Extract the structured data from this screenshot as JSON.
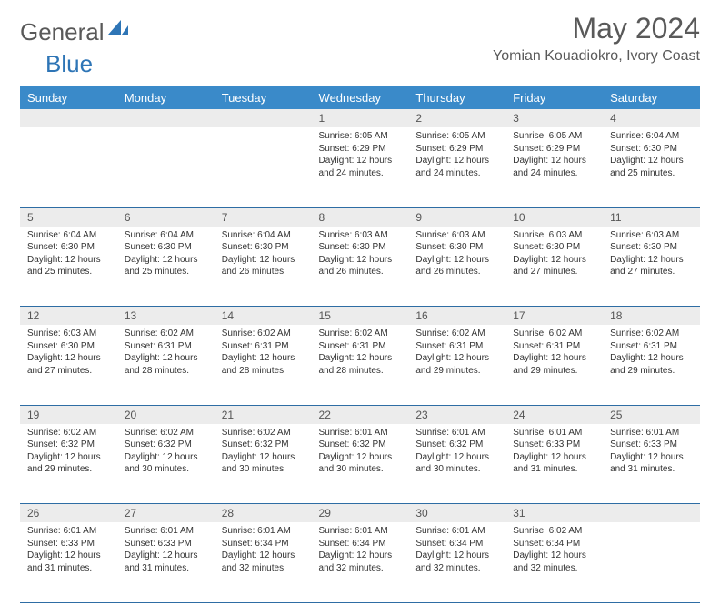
{
  "brand": {
    "part1": "General",
    "part2": "Blue"
  },
  "title": "May 2024",
  "location": "Yomian Kouadiokro, Ivory Coast",
  "colors": {
    "header_bg": "#3a8ac9",
    "rule": "#2e6da4",
    "daynum_bg": "#ececec",
    "text": "#333333",
    "title_text": "#595959",
    "brand_blue": "#2e75b6"
  },
  "dayNames": [
    "Sunday",
    "Monday",
    "Tuesday",
    "Wednesday",
    "Thursday",
    "Friday",
    "Saturday"
  ],
  "weeks": [
    {
      "nums": [
        "",
        "",
        "",
        "1",
        "2",
        "3",
        "4"
      ],
      "cells": [
        null,
        null,
        null,
        {
          "sunrise": "6:05 AM",
          "sunset": "6:29 PM",
          "daylight": "12 hours and 24 minutes."
        },
        {
          "sunrise": "6:05 AM",
          "sunset": "6:29 PM",
          "daylight": "12 hours and 24 minutes."
        },
        {
          "sunrise": "6:05 AM",
          "sunset": "6:29 PM",
          "daylight": "12 hours and 24 minutes."
        },
        {
          "sunrise": "6:04 AM",
          "sunset": "6:30 PM",
          "daylight": "12 hours and 25 minutes."
        }
      ]
    },
    {
      "nums": [
        "5",
        "6",
        "7",
        "8",
        "9",
        "10",
        "11"
      ],
      "cells": [
        {
          "sunrise": "6:04 AM",
          "sunset": "6:30 PM",
          "daylight": "12 hours and 25 minutes."
        },
        {
          "sunrise": "6:04 AM",
          "sunset": "6:30 PM",
          "daylight": "12 hours and 25 minutes."
        },
        {
          "sunrise": "6:04 AM",
          "sunset": "6:30 PM",
          "daylight": "12 hours and 26 minutes."
        },
        {
          "sunrise": "6:03 AM",
          "sunset": "6:30 PM",
          "daylight": "12 hours and 26 minutes."
        },
        {
          "sunrise": "6:03 AM",
          "sunset": "6:30 PM",
          "daylight": "12 hours and 26 minutes."
        },
        {
          "sunrise": "6:03 AM",
          "sunset": "6:30 PM",
          "daylight": "12 hours and 27 minutes."
        },
        {
          "sunrise": "6:03 AM",
          "sunset": "6:30 PM",
          "daylight": "12 hours and 27 minutes."
        }
      ]
    },
    {
      "nums": [
        "12",
        "13",
        "14",
        "15",
        "16",
        "17",
        "18"
      ],
      "cells": [
        {
          "sunrise": "6:03 AM",
          "sunset": "6:30 PM",
          "daylight": "12 hours and 27 minutes."
        },
        {
          "sunrise": "6:02 AM",
          "sunset": "6:31 PM",
          "daylight": "12 hours and 28 minutes."
        },
        {
          "sunrise": "6:02 AM",
          "sunset": "6:31 PM",
          "daylight": "12 hours and 28 minutes."
        },
        {
          "sunrise": "6:02 AM",
          "sunset": "6:31 PM",
          "daylight": "12 hours and 28 minutes."
        },
        {
          "sunrise": "6:02 AM",
          "sunset": "6:31 PM",
          "daylight": "12 hours and 29 minutes."
        },
        {
          "sunrise": "6:02 AM",
          "sunset": "6:31 PM",
          "daylight": "12 hours and 29 minutes."
        },
        {
          "sunrise": "6:02 AM",
          "sunset": "6:31 PM",
          "daylight": "12 hours and 29 minutes."
        }
      ]
    },
    {
      "nums": [
        "19",
        "20",
        "21",
        "22",
        "23",
        "24",
        "25"
      ],
      "cells": [
        {
          "sunrise": "6:02 AM",
          "sunset": "6:32 PM",
          "daylight": "12 hours and 29 minutes."
        },
        {
          "sunrise": "6:02 AM",
          "sunset": "6:32 PM",
          "daylight": "12 hours and 30 minutes."
        },
        {
          "sunrise": "6:02 AM",
          "sunset": "6:32 PM",
          "daylight": "12 hours and 30 minutes."
        },
        {
          "sunrise": "6:01 AM",
          "sunset": "6:32 PM",
          "daylight": "12 hours and 30 minutes."
        },
        {
          "sunrise": "6:01 AM",
          "sunset": "6:32 PM",
          "daylight": "12 hours and 30 minutes."
        },
        {
          "sunrise": "6:01 AM",
          "sunset": "6:33 PM",
          "daylight": "12 hours and 31 minutes."
        },
        {
          "sunrise": "6:01 AM",
          "sunset": "6:33 PM",
          "daylight": "12 hours and 31 minutes."
        }
      ]
    },
    {
      "nums": [
        "26",
        "27",
        "28",
        "29",
        "30",
        "31",
        ""
      ],
      "cells": [
        {
          "sunrise": "6:01 AM",
          "sunset": "6:33 PM",
          "daylight": "12 hours and 31 minutes."
        },
        {
          "sunrise": "6:01 AM",
          "sunset": "6:33 PM",
          "daylight": "12 hours and 31 minutes."
        },
        {
          "sunrise": "6:01 AM",
          "sunset": "6:34 PM",
          "daylight": "12 hours and 32 minutes."
        },
        {
          "sunrise": "6:01 AM",
          "sunset": "6:34 PM",
          "daylight": "12 hours and 32 minutes."
        },
        {
          "sunrise": "6:01 AM",
          "sunset": "6:34 PM",
          "daylight": "12 hours and 32 minutes."
        },
        {
          "sunrise": "6:02 AM",
          "sunset": "6:34 PM",
          "daylight": "12 hours and 32 minutes."
        },
        null
      ]
    }
  ],
  "labels": {
    "sunrise": "Sunrise:",
    "sunset": "Sunset:",
    "daylight": "Daylight:"
  }
}
